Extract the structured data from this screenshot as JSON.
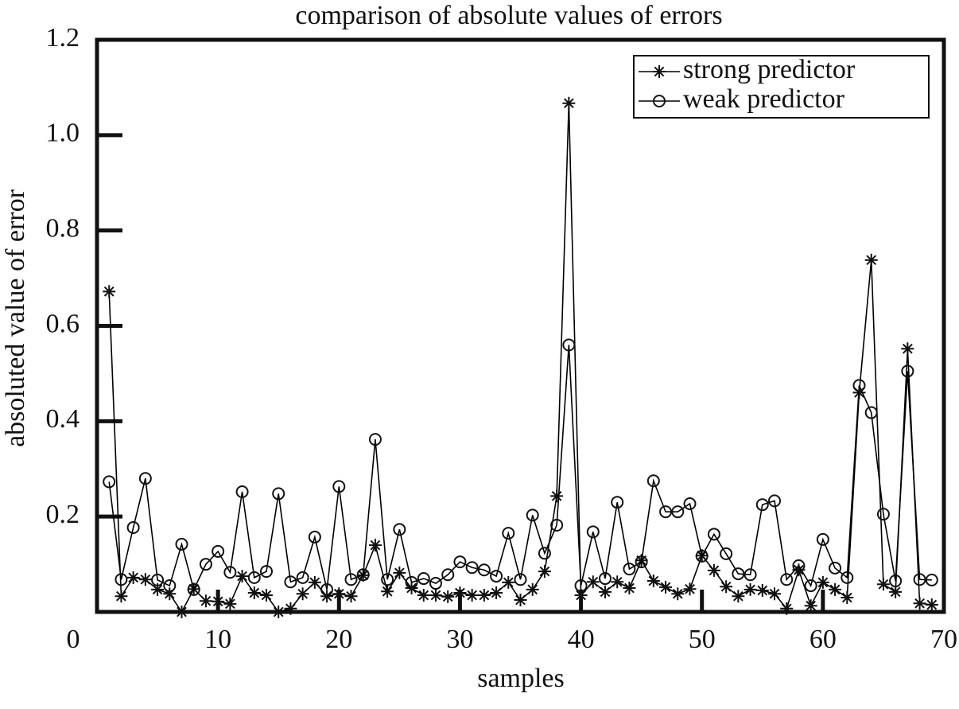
{
  "chart_data": {
    "type": "line",
    "title": "comparison of absolute values of errors",
    "xlabel": "samples",
    "ylabel": "absoluted value of error",
    "x": [
      1,
      2,
      3,
      4,
      5,
      6,
      7,
      8,
      9,
      10,
      11,
      12,
      13,
      14,
      15,
      16,
      17,
      18,
      19,
      20,
      21,
      22,
      23,
      24,
      25,
      26,
      27,
      28,
      29,
      30,
      31,
      32,
      33,
      34,
      35,
      36,
      37,
      38,
      39,
      40,
      41,
      42,
      43,
      44,
      45,
      46,
      47,
      48,
      49,
      50,
      51,
      52,
      53,
      54,
      55,
      56,
      57,
      58,
      59,
      60,
      61,
      62,
      63,
      64,
      65,
      66,
      67,
      68,
      69
    ],
    "series": [
      {
        "name": "strong predictor",
        "color": "#000000",
        "marker": "star",
        "values": [
          0.672,
          0.033,
          0.072,
          0.068,
          0.047,
          0.038,
          0.0,
          0.048,
          0.023,
          0.022,
          0.017,
          0.075,
          0.04,
          0.035,
          0.0,
          0.007,
          0.038,
          0.062,
          0.033,
          0.038,
          0.033,
          0.077,
          0.14,
          0.043,
          0.082,
          0.05,
          0.035,
          0.035,
          0.032,
          0.04,
          0.035,
          0.035,
          0.04,
          0.062,
          0.025,
          0.047,
          0.085,
          0.243,
          1.067,
          0.035,
          0.063,
          0.042,
          0.063,
          0.05,
          0.108,
          0.065,
          0.052,
          0.038,
          0.048,
          0.118,
          0.087,
          0.053,
          0.033,
          0.047,
          0.045,
          0.038,
          0.007,
          0.088,
          0.013,
          0.062,
          0.047,
          0.03,
          0.46,
          0.738,
          0.058,
          0.042,
          0.552,
          0.018,
          0.015
        ]
      },
      {
        "name": "weak predictor",
        "color": "#000000",
        "marker": "circle",
        "values": [
          0.273,
          0.068,
          0.177,
          0.28,
          0.067,
          0.055,
          0.142,
          0.047,
          0.1,
          0.127,
          0.083,
          0.252,
          0.072,
          0.085,
          0.248,
          0.063,
          0.072,
          0.157,
          0.047,
          0.263,
          0.068,
          0.078,
          0.362,
          0.068,
          0.173,
          0.062,
          0.07,
          0.06,
          0.078,
          0.105,
          0.093,
          0.088,
          0.075,
          0.165,
          0.068,
          0.203,
          0.123,
          0.182,
          0.56,
          0.055,
          0.168,
          0.07,
          0.23,
          0.09,
          0.105,
          0.275,
          0.21,
          0.21,
          0.227,
          0.117,
          0.163,
          0.122,
          0.08,
          0.078,
          0.225,
          0.233,
          0.068,
          0.097,
          0.055,
          0.152,
          0.092,
          0.072,
          0.475,
          0.418,
          0.205,
          0.065,
          0.505,
          0.068,
          0.067
        ]
      }
    ],
    "xlim": [
      0,
      70
    ],
    "xticks": [
      0,
      10,
      20,
      30,
      40,
      50,
      60,
      70
    ],
    "ylim": [
      0,
      1.2
    ],
    "yticks": [
      0.2,
      0.4,
      0.6,
      0.8,
      {
        "value": 1,
        "label": "1.0"
      },
      1.2
    ],
    "legend": "upper right",
    "grid": false
  }
}
